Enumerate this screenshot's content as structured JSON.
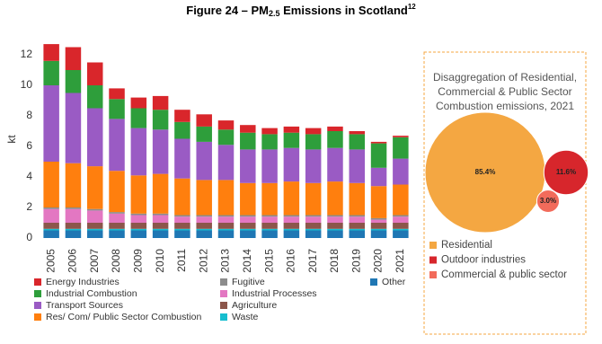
{
  "chart_data": [
    {
      "type": "bar",
      "stacked": true,
      "title": [
        "Figure 24 – PM",
        "2.5",
        " Emissions in Scotland",
        "12"
      ],
      "y_label": "kt",
      "categories": [
        "2005",
        "2006",
        "2007",
        "2008",
        "2009",
        "2010",
        "2011",
        "2012",
        "2013",
        "2014",
        "2015",
        "2016",
        "2017",
        "2018",
        "2019",
        "2020",
        "2021"
      ],
      "ylim": [
        0,
        13
      ],
      "yticks": [
        0,
        2,
        4,
        6,
        8,
        10,
        12
      ],
      "series": [
        {
          "name": "Energy Industries",
          "color": "#d9262b",
          "values": [
            1.1,
            1.5,
            1.5,
            0.7,
            0.7,
            0.9,
            0.8,
            0.8,
            0.6,
            0.5,
            0.4,
            0.4,
            0.4,
            0.3,
            0.2,
            0.1,
            0.1
          ]
        },
        {
          "name": "Industrial Combustion",
          "color": "#2e9e3b",
          "values": [
            1.6,
            1.5,
            1.5,
            1.3,
            1.3,
            1.3,
            1.1,
            1.0,
            1.0,
            1.1,
            1.0,
            1.0,
            1.0,
            1.1,
            1.0,
            1.6,
            1.4
          ]
        },
        {
          "name": "Transport Sources",
          "color": "#9a5bc4",
          "values": [
            5.0,
            4.6,
            3.8,
            3.4,
            3.1,
            2.9,
            2.6,
            2.5,
            2.3,
            2.2,
            2.2,
            2.2,
            2.2,
            2.2,
            2.2,
            1.2,
            1.7
          ]
        },
        {
          "name": "Res/ Com/ Public Sector Combustion",
          "color": "#ff7f0e",
          "values": [
            3.0,
            2.9,
            2.8,
            2.7,
            2.5,
            2.6,
            2.4,
            2.3,
            2.3,
            2.1,
            2.1,
            2.2,
            2.1,
            2.2,
            2.1,
            2.1,
            2.0
          ]
        },
        {
          "name": "Fugitive",
          "color": "#8c8c8c",
          "values": [
            0.1,
            0.1,
            0.1,
            0.1,
            0.1,
            0.1,
            0.1,
            0.1,
            0.1,
            0.1,
            0.1,
            0.1,
            0.1,
            0.1,
            0.1,
            0.1,
            0.1
          ]
        },
        {
          "name": "Industrial Processes",
          "color": "#e377c2",
          "values": [
            0.9,
            0.9,
            0.8,
            0.6,
            0.5,
            0.5,
            0.4,
            0.4,
            0.4,
            0.4,
            0.4,
            0.4,
            0.4,
            0.4,
            0.4,
            0.2,
            0.4
          ]
        },
        {
          "name": "Agriculture",
          "color": "#8c564b",
          "values": [
            0.4,
            0.4,
            0.4,
            0.4,
            0.4,
            0.4,
            0.4,
            0.4,
            0.4,
            0.4,
            0.4,
            0.4,
            0.4,
            0.4,
            0.4,
            0.4,
            0.4
          ]
        },
        {
          "name": "Waste",
          "color": "#17becf",
          "values": [
            0.1,
            0.1,
            0.1,
            0.1,
            0.1,
            0.1,
            0.1,
            0.1,
            0.1,
            0.1,
            0.1,
            0.1,
            0.1,
            0.1,
            0.1,
            0.1,
            0.1
          ]
        },
        {
          "name": "Other",
          "color": "#1f77b4",
          "values": [
            0.5,
            0.5,
            0.5,
            0.5,
            0.5,
            0.5,
            0.5,
            0.5,
            0.5,
            0.5,
            0.5,
            0.5,
            0.5,
            0.5,
            0.5,
            0.5,
            0.5
          ]
        }
      ]
    },
    {
      "type": "bubble",
      "title": "Disaggregation of Residential, Commercial & Public Sector Combustion emissions, 2021",
      "categories": [
        "Residential",
        "Outdoor industries",
        "Commercial & public sector"
      ],
      "values": [
        85.4,
        11.6,
        3.0
      ],
      "value_labels": [
        "85.4%",
        "11.6%",
        "3.0%"
      ],
      "colors": [
        "#f4a742",
        "#d7262c",
        "#f26b5b"
      ]
    }
  ]
}
